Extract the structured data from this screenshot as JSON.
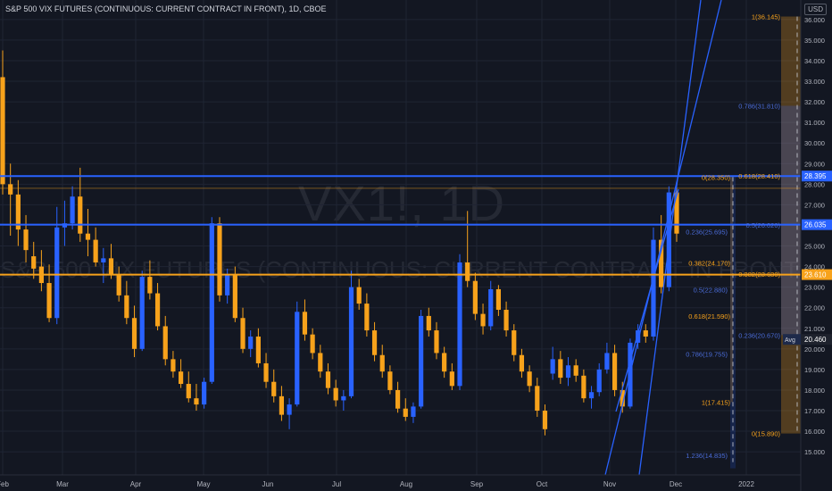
{
  "header": {
    "title": "S&P 500 VIX FUTURES (CONTINUOUS: CURRENT CONTRACT IN FRONT), 1D, CBOE",
    "currency": "USD"
  },
  "watermark": {
    "symbol": "VX1!, 1D",
    "description": "S&P 500 VIX FUTURES (CONTINUOUS: CURRENT CONTRACT IN FRONT)"
  },
  "chart_data": {
    "type": "candlestick",
    "title": "S&P 500 VIX FUTURES (CONTINUOUS: CURRENT CONTRACT IN FRONT), 1D, CBOE",
    "y_ticks": [
      15,
      16,
      17,
      18,
      19,
      20,
      21,
      22,
      23,
      24,
      25,
      26,
      27,
      28,
      29,
      30,
      31,
      32,
      33,
      34,
      35,
      36
    ],
    "y_tick_labels": [
      "15.000",
      "16.000",
      "17.000",
      "18.000",
      "19.000",
      "20.000",
      "21.000",
      "22.000",
      "23.000",
      "24.000",
      "25.000",
      "26.000",
      "27.000",
      "28.000",
      "29.000",
      "30.000",
      "31.000",
      "32.000",
      "33.000",
      "34.000",
      "35.000",
      "36.000"
    ],
    "x_tick_labels": [
      "Feb",
      "Mar",
      "Apr",
      "May",
      "Jun",
      "Jul",
      "Aug",
      "Sep",
      "Oct",
      "Nov",
      "Dec",
      "2022"
    ],
    "ohlc_approx": [
      [
        33.2,
        34.5,
        27.5,
        28.0
      ],
      [
        28.0,
        29.0,
        25.5,
        27.5
      ],
      [
        27.5,
        28.2,
        25.0,
        25.8
      ],
      [
        25.8,
        26.5,
        24.2,
        24.8
      ],
      [
        24.5,
        25.2,
        23.4,
        23.9
      ],
      [
        24.0,
        24.8,
        22.8,
        23.2
      ],
      [
        23.2,
        24.1,
        21.3,
        21.5
      ],
      [
        21.5,
        26.9,
        21.2,
        25.9
      ],
      [
        25.9,
        27.2,
        25.0,
        26.1
      ],
      [
        26.1,
        27.9,
        25.8,
        27.4
      ],
      [
        27.4,
        28.8,
        25.2,
        25.6
      ],
      [
        25.6,
        26.8,
        24.5,
        25.3
      ],
      [
        25.3,
        25.9,
        24.0,
        24.2
      ],
      [
        24.2,
        24.9,
        23.2,
        24.4
      ],
      [
        24.4,
        25.1,
        23.4,
        23.6
      ],
      [
        23.6,
        24.0,
        22.3,
        22.6
      ],
      [
        22.6,
        23.3,
        21.2,
        21.5
      ],
      [
        21.5,
        22.1,
        19.6,
        20.0
      ],
      [
        20.0,
        23.8,
        19.9,
        23.5
      ],
      [
        23.5,
        24.3,
        22.4,
        22.7
      ],
      [
        22.7,
        23.2,
        20.9,
        21.1
      ],
      [
        21.1,
        21.6,
        19.2,
        19.5
      ],
      [
        19.5,
        19.9,
        18.6,
        18.9
      ],
      [
        18.9,
        19.5,
        18.1,
        18.3
      ],
      [
        18.3,
        18.9,
        17.4,
        17.6
      ],
      [
        17.6,
        18.3,
        17.0,
        17.3
      ],
      [
        17.3,
        18.6,
        17.1,
        18.4
      ],
      [
        18.4,
        26.4,
        18.3,
        26.1
      ],
      [
        26.1,
        26.4,
        22.3,
        22.6
      ],
      [
        22.6,
        23.9,
        22.2,
        23.6
      ],
      [
        23.6,
        24.0,
        21.3,
        21.5
      ],
      [
        21.5,
        22.0,
        19.8,
        20.0
      ],
      [
        20.0,
        20.9,
        19.6,
        20.6
      ],
      [
        20.6,
        21.0,
        19.1,
        19.3
      ],
      [
        19.3,
        19.8,
        18.1,
        18.4
      ],
      [
        18.4,
        19.0,
        17.4,
        17.7
      ],
      [
        17.7,
        18.2,
        16.5,
        16.8
      ],
      [
        16.8,
        17.6,
        16.1,
        17.3
      ],
      [
        17.3,
        22.3,
        17.2,
        21.8
      ],
      [
        21.8,
        22.4,
        20.4,
        20.7
      ],
      [
        20.7,
        21.0,
        19.5,
        19.8
      ],
      [
        19.8,
        20.2,
        18.6,
        18.9
      ],
      [
        18.9,
        19.3,
        17.8,
        18.1
      ],
      [
        18.1,
        18.5,
        17.2,
        17.5
      ],
      [
        17.5,
        18.0,
        17.0,
        17.7
      ],
      [
        17.7,
        23.8,
        17.6,
        23.0
      ],
      [
        23.0,
        23.4,
        21.9,
        22.2
      ],
      [
        22.2,
        22.7,
        20.6,
        20.9
      ],
      [
        20.9,
        21.3,
        19.4,
        19.7
      ],
      [
        19.7,
        20.2,
        18.6,
        18.9
      ],
      [
        18.9,
        19.2,
        17.8,
        18.0
      ],
      [
        18.0,
        18.4,
        16.9,
        17.1
      ],
      [
        17.1,
        17.6,
        16.5,
        16.7
      ],
      [
        16.7,
        17.4,
        16.4,
        17.2
      ],
      [
        17.2,
        21.9,
        17.1,
        21.6
      ],
      [
        21.6,
        22.0,
        20.6,
        20.9
      ],
      [
        20.9,
        21.3,
        19.5,
        19.8
      ],
      [
        19.8,
        20.1,
        18.6,
        18.9
      ],
      [
        18.9,
        19.3,
        18.0,
        18.2
      ],
      [
        18.2,
        24.6,
        18.0,
        24.2
      ],
      [
        24.2,
        26.7,
        23.0,
        23.3
      ],
      [
        23.3,
        23.7,
        21.4,
        21.7
      ],
      [
        21.7,
        22.2,
        20.7,
        21.1
      ],
      [
        21.1,
        23.3,
        20.9,
        22.9
      ],
      [
        22.9,
        23.1,
        21.6,
        21.9
      ],
      [
        21.9,
        22.3,
        20.6,
        20.9
      ],
      [
        20.9,
        21.2,
        19.4,
        19.7
      ],
      [
        19.7,
        20.0,
        18.6,
        18.9
      ],
      [
        18.9,
        19.2,
        17.9,
        18.2
      ],
      [
        18.2,
        18.6,
        16.7,
        17.0
      ],
      [
        17.0,
        17.3,
        15.8,
        16.1
      ],
      [
        18.8,
        20.1,
        18.5,
        19.5
      ],
      [
        19.5,
        19.9,
        18.3,
        18.6
      ],
      [
        18.6,
        19.6,
        18.2,
        19.2
      ],
      [
        19.2,
        19.5,
        18.4,
        18.7
      ],
      [
        18.7,
        19.0,
        17.4,
        17.6
      ],
      [
        17.6,
        18.2,
        17.1,
        17.9
      ],
      [
        17.9,
        19.3,
        17.7,
        19.0
      ],
      [
        19.0,
        20.3,
        18.8,
        19.8
      ],
      [
        19.8,
        20.2,
        17.7,
        18.0
      ],
      [
        18.0,
        18.4,
        16.9,
        17.2
      ],
      [
        17.2,
        20.5,
        17.1,
        20.3
      ],
      [
        20.3,
        21.2,
        20.0,
        20.9
      ],
      [
        20.9,
        21.2,
        20.3,
        20.6
      ],
      [
        20.6,
        25.9,
        20.4,
        25.3
      ],
      [
        25.3,
        26.5,
        22.7,
        23.0
      ],
      [
        23.0,
        27.9,
        22.8,
        27.6
      ],
      [
        27.6,
        28.1,
        25.2,
        25.6
      ]
    ],
    "horizontal_levels": [
      {
        "value": 28.395,
        "label": "28.395"
      },
      {
        "value": 26.035,
        "label": "26.035"
      },
      {
        "value": 23.61,
        "label": "23.610"
      }
    ],
    "last_price": {
      "value": 20.46,
      "label": "20.460",
      "tag": "Avg"
    },
    "fib_orange_left": [
      {
        "ratio_label": "0(28.350)",
        "value": 28.35
      },
      {
        "ratio_label": "0.382(24.170)",
        "value": 24.17
      },
      {
        "ratio_label": "0.618(21.590)",
        "value": 21.59
      },
      {
        "ratio_label": "1(17.415)",
        "value": 17.415
      }
    ],
    "fib_blue_left": [
      {
        "ratio_label": "0.236(25.695)",
        "value": 25.695
      },
      {
        "ratio_label": "0.5(22.880)",
        "value": 22.88
      },
      {
        "ratio_label": "0.786(19.755)",
        "value": 19.755
      },
      {
        "ratio_label": "1.236(14.835)",
        "value": 14.835
      }
    ],
    "fib_orange_right": [
      {
        "ratio_label": "1(36.145)",
        "value": 36.145
      },
      {
        "ratio_label": "0.618(28.410)",
        "value": 28.41
      },
      {
        "ratio_label": "0.382(23.630)",
        "value": 23.63
      },
      {
        "ratio_label": "0(15.890)",
        "value": 15.89
      }
    ],
    "fib_blue_right": [
      {
        "ratio_label": "0.786(31.810)",
        "value": 31.81
      },
      {
        "ratio_label": "0.5(26.020)",
        "value": 26.02
      },
      {
        "ratio_label": "0.236(20.670)",
        "value": 20.67
      }
    ],
    "colors": {
      "background": "#131722",
      "up": "#2962ff",
      "down": "#f7a21b",
      "level_blue": "#2962ff",
      "level_orange": "#f7a21b",
      "grid": "#1f2433",
      "axis_text": "#b2b5be"
    }
  }
}
